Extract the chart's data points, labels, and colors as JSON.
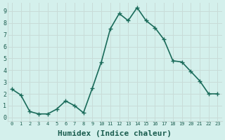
{
  "x": [
    0,
    1,
    2,
    3,
    4,
    5,
    6,
    7,
    8,
    9,
    10,
    11,
    12,
    13,
    14,
    15,
    16,
    17,
    18,
    19,
    20,
    21,
    22,
    23
  ],
  "y": [
    2.4,
    1.9,
    0.5,
    0.3,
    0.3,
    0.7,
    1.4,
    1.0,
    0.4,
    2.5,
    4.7,
    7.5,
    8.8,
    8.2,
    9.3,
    8.2,
    7.6,
    6.6,
    4.8,
    4.7,
    3.9,
    3.1,
    2.0,
    2.0
  ],
  "line_color": "#1a6b5a",
  "marker": "+",
  "marker_size": 5,
  "marker_color": "#1a6b5a",
  "bg_color": "#d4f0ec",
  "grid_color": "#c8dcd8",
  "axis_label_color": "#1a5c4e",
  "tick_label_color": "#1a5c4e",
  "xlabel": "Humidex (Indice chaleur)",
  "xlabel_fontsize": 8,
  "ylim": [
    -0.3,
    9.7
  ],
  "xlim": [
    -0.5,
    23.5
  ],
  "yticks": [
    0,
    1,
    2,
    3,
    4,
    5,
    6,
    7,
    8,
    9
  ],
  "xticks": [
    0,
    1,
    2,
    3,
    4,
    5,
    6,
    7,
    8,
    9,
    10,
    11,
    12,
    13,
    14,
    15,
    16,
    17,
    18,
    19,
    20,
    21,
    22,
    23
  ],
  "xtick_labels": [
    "0",
    "1",
    "2",
    "3",
    "4",
    "5",
    "6",
    "7",
    "8",
    "9",
    "10",
    "11",
    "12",
    "13",
    "14",
    "15",
    "16",
    "17",
    "18",
    "19",
    "20",
    "21",
    "22",
    "23"
  ],
  "line_width": 1.2
}
